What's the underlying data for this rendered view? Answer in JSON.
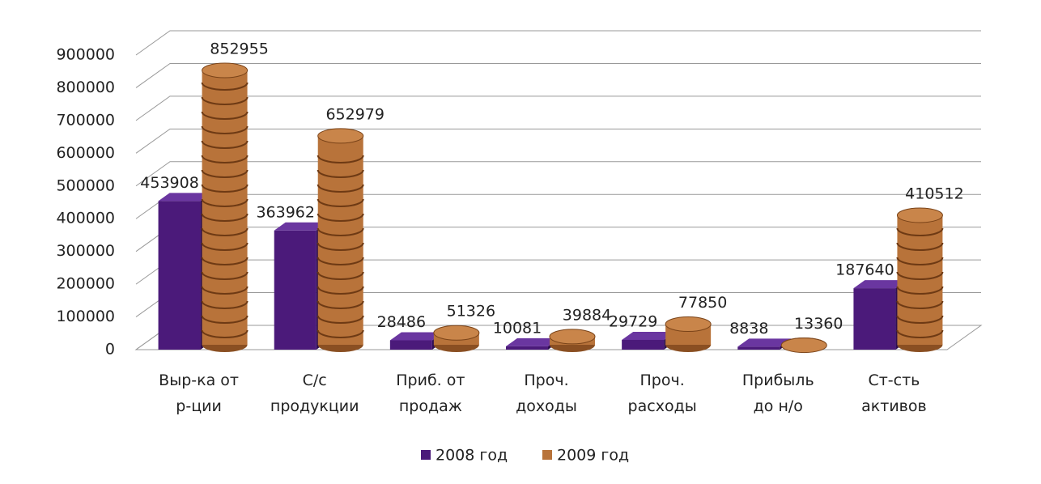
{
  "chart_data": {
    "type": "bar3d",
    "categories": [
      "Выр-ка от\nр-ции",
      "С/с\nпродукции",
      "Приб. от\nпродаж",
      "Проч.\nдоходы",
      "Проч.\nрасходы",
      "Прибыль\nдо н/о",
      "Ст-сть\nактивов"
    ],
    "series": [
      {
        "name": "2008 год",
        "color": "#4b1a7a",
        "values": [
          453908,
          363962,
          28486,
          10081,
          29729,
          8838,
          187640
        ]
      },
      {
        "name": "2009 год",
        "color": "#b8733a",
        "values": [
          852955,
          652979,
          51326,
          39884,
          77850,
          13360,
          410512
        ]
      }
    ],
    "ylim": [
      0,
      900000
    ],
    "yticks": [
      0,
      100000,
      200000,
      300000,
      400000,
      500000,
      600000,
      700000,
      800000,
      900000
    ],
    "grid": true,
    "legend": "bottom"
  }
}
